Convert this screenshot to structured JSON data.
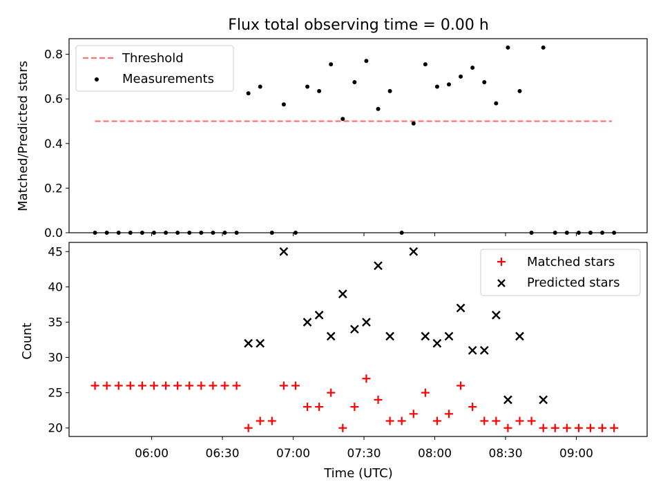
{
  "chart_data": [
    {
      "type": "scatter",
      "title": "Flux total observing time = 0.00 h",
      "xlabel": "",
      "ylabel": "Matched/Predicted stars",
      "xlim": [
        "05:25",
        "09:30"
      ],
      "ylim": [
        0,
        0.87
      ],
      "yticks": [
        0.0,
        0.2,
        0.4,
        0.6,
        0.8
      ],
      "ytick_labels": [
        "0.0",
        "0.2",
        "0.4",
        "0.6",
        "0.8"
      ],
      "legend": {
        "placement": "top-left",
        "entries": [
          "Threshold",
          "Measurements"
        ]
      },
      "threshold": {
        "name": "Threshold",
        "value": 0.5,
        "x_start": "05:36",
        "x_end": "09:15",
        "color": "#ff7070",
        "style": "dashed"
      },
      "series": [
        {
          "name": "Measurements",
          "color": "#000000",
          "marker": "dot",
          "points": [
            [
              "05:36",
              0.0
            ],
            [
              "05:41",
              0.0
            ],
            [
              "05:46",
              0.0
            ],
            [
              "05:51",
              0.0
            ],
            [
              "05:56",
              0.0
            ],
            [
              "06:01",
              0.0
            ],
            [
              "06:06",
              0.0
            ],
            [
              "06:11",
              0.0
            ],
            [
              "06:16",
              0.0
            ],
            [
              "06:21",
              0.0
            ],
            [
              "06:26",
              0.0
            ],
            [
              "06:31",
              0.0
            ],
            [
              "06:36",
              0.0
            ],
            [
              "06:41",
              0.625
            ],
            [
              "06:46",
              0.655
            ],
            [
              "06:51",
              0.0
            ],
            [
              "06:56",
              0.575
            ],
            [
              "07:01",
              0.0
            ],
            [
              "07:06",
              0.655
            ],
            [
              "07:11",
              0.635
            ],
            [
              "07:16",
              0.755
            ],
            [
              "07:21",
              0.51
            ],
            [
              "07:26",
              0.675
            ],
            [
              "07:31",
              0.77
            ],
            [
              "07:36",
              0.555
            ],
            [
              "07:41",
              0.635
            ],
            [
              "07:46",
              0.0
            ],
            [
              "07:51",
              0.49
            ],
            [
              "07:56",
              0.755
            ],
            [
              "08:01",
              0.655
            ],
            [
              "08:06",
              0.665
            ],
            [
              "08:11",
              0.7
            ],
            [
              "08:16",
              0.74
            ],
            [
              "08:21",
              0.675
            ],
            [
              "08:26",
              0.58
            ],
            [
              "08:31",
              0.83
            ],
            [
              "08:36",
              0.635
            ],
            [
              "08:41",
              0.0
            ],
            [
              "08:46",
              0.83
            ],
            [
              "08:51",
              0.0
            ],
            [
              "08:56",
              0.0
            ],
            [
              "09:01",
              0.0
            ],
            [
              "09:06",
              0.0
            ],
            [
              "09:11",
              0.0
            ],
            [
              "09:16",
              0.0
            ]
          ]
        }
      ]
    },
    {
      "type": "scatter",
      "title": "",
      "xlabel": "Time (UTC)",
      "ylabel": "Count",
      "xlim": [
        "05:25",
        "09:30"
      ],
      "ylim": [
        18.8,
        46.3
      ],
      "yticks": [
        20,
        25,
        30,
        35,
        40,
        45
      ],
      "ytick_labels": [
        "20",
        "25",
        "30",
        "35",
        "40",
        "45"
      ],
      "xticks": [
        "06:00",
        "06:30",
        "07:00",
        "07:30",
        "08:00",
        "08:30",
        "09:00"
      ],
      "xtick_labels": [
        "06:00",
        "06:30",
        "07:00",
        "07:30",
        "08:00",
        "08:30",
        "09:00"
      ],
      "legend": {
        "placement": "top-right",
        "entries": [
          "Matched stars",
          "Predicted stars"
        ]
      },
      "series": [
        {
          "name": "Matched stars",
          "color": "#ff0000",
          "marker": "plus",
          "points": [
            [
              "05:36",
              26
            ],
            [
              "05:41",
              26
            ],
            [
              "05:46",
              26
            ],
            [
              "05:51",
              26
            ],
            [
              "05:56",
              26
            ],
            [
              "06:01",
              26
            ],
            [
              "06:06",
              26
            ],
            [
              "06:11",
              26
            ],
            [
              "06:16",
              26
            ],
            [
              "06:21",
              26
            ],
            [
              "06:26",
              26
            ],
            [
              "06:31",
              26
            ],
            [
              "06:36",
              26
            ],
            [
              "06:41",
              20
            ],
            [
              "06:46",
              21
            ],
            [
              "06:51",
              21
            ],
            [
              "06:56",
              26
            ],
            [
              "07:01",
              26
            ],
            [
              "07:06",
              23
            ],
            [
              "07:11",
              23
            ],
            [
              "07:16",
              25
            ],
            [
              "07:21",
              20
            ],
            [
              "07:26",
              23
            ],
            [
              "07:31",
              27
            ],
            [
              "07:36",
              24
            ],
            [
              "07:41",
              21
            ],
            [
              "07:46",
              21
            ],
            [
              "07:51",
              22
            ],
            [
              "07:56",
              25
            ],
            [
              "08:01",
              21
            ],
            [
              "08:06",
              22
            ],
            [
              "08:11",
              26
            ],
            [
              "08:16",
              23
            ],
            [
              "08:21",
              21
            ],
            [
              "08:26",
              21
            ],
            [
              "08:31",
              20
            ],
            [
              "08:36",
              21
            ],
            [
              "08:41",
              21
            ],
            [
              "08:46",
              20
            ],
            [
              "08:51",
              20
            ],
            [
              "08:56",
              20
            ],
            [
              "09:01",
              20
            ],
            [
              "09:06",
              20
            ],
            [
              "09:11",
              20
            ],
            [
              "09:16",
              20
            ]
          ]
        },
        {
          "name": "Predicted stars",
          "color": "#000000",
          "marker": "x",
          "points": [
            [
              "06:41",
              32
            ],
            [
              "06:46",
              32
            ],
            [
              "06:56",
              45
            ],
            [
              "07:06",
              35
            ],
            [
              "07:11",
              36
            ],
            [
              "07:16",
              33
            ],
            [
              "07:21",
              39
            ],
            [
              "07:26",
              34
            ],
            [
              "07:31",
              35
            ],
            [
              "07:36",
              43
            ],
            [
              "07:41",
              33
            ],
            [
              "07:51",
              45
            ],
            [
              "07:56",
              33
            ],
            [
              "08:01",
              32
            ],
            [
              "08:06",
              33
            ],
            [
              "08:11",
              37
            ],
            [
              "08:16",
              31
            ],
            [
              "08:21",
              31
            ],
            [
              "08:26",
              36
            ],
            [
              "08:31",
              24
            ],
            [
              "08:36",
              33
            ],
            [
              "08:46",
              24
            ]
          ]
        }
      ]
    }
  ]
}
